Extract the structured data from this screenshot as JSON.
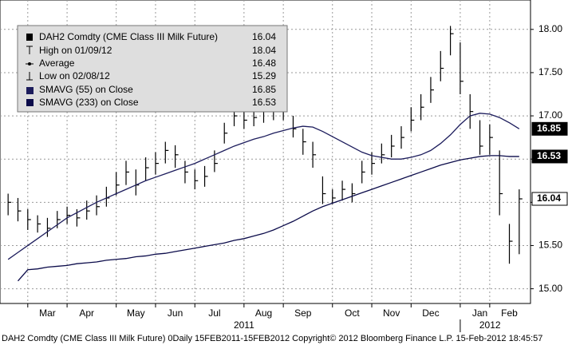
{
  "chart_data": {
    "type": "ohlc",
    "categories": [
      null,
      null,
      null,
      null,
      "Mar",
      null,
      null,
      null,
      "Apr",
      null,
      null,
      null,
      null,
      "May",
      null,
      null,
      null,
      "Jun",
      null,
      null,
      null,
      "Jul",
      null,
      null,
      null,
      null,
      "Aug",
      null,
      null,
      null,
      "Sep",
      null,
      null,
      null,
      null,
      "Oct",
      null,
      null,
      null,
      "Nov",
      null,
      null,
      null,
      "Dec",
      null,
      null,
      null,
      null,
      "Jan",
      null,
      null,
      "Feb",
      null
    ],
    "x_groups": [
      "2011",
      "2012"
    ],
    "series": [
      {
        "name": "DAH2 Comdty (CME Class III Milk Future)",
        "color": "#000000",
        "last": 16.04,
        "high": [
          16.1,
          16.05,
          15.92,
          15.85,
          15.82,
          15.9,
          15.95,
          15.92,
          16.02,
          16.08,
          16.18,
          16.35,
          16.48,
          16.38,
          16.52,
          16.58,
          16.7,
          16.66,
          16.48,
          16.38,
          16.42,
          16.6,
          16.92,
          17.1,
          17.05,
          17.08,
          17.12,
          17.12,
          17.14,
          17.0,
          16.85,
          16.7,
          16.3,
          16.15,
          16.25,
          16.22,
          16.48,
          16.58,
          16.68,
          16.78,
          16.88,
          17.1,
          17.25,
          17.45,
          17.75,
          18.04,
          17.85,
          17.25,
          16.95,
          16.9,
          16.6,
          15.75,
          16.15
        ],
        "low": [
          15.85,
          15.78,
          15.68,
          15.65,
          15.6,
          15.7,
          15.75,
          15.72,
          15.8,
          15.85,
          15.95,
          16.08,
          16.2,
          16.08,
          16.25,
          16.32,
          16.45,
          16.4,
          16.22,
          16.15,
          16.18,
          16.35,
          16.68,
          16.88,
          16.85,
          16.88,
          16.92,
          16.95,
          16.95,
          16.75,
          16.55,
          16.4,
          15.98,
          15.98,
          16.02,
          16.0,
          16.22,
          16.32,
          16.45,
          16.52,
          16.62,
          16.82,
          16.95,
          17.15,
          17.4,
          17.7,
          17.25,
          16.85,
          16.55,
          16.55,
          15.85,
          15.29,
          15.4
        ],
        "close": [
          16.0,
          15.9,
          15.8,
          15.75,
          15.7,
          15.8,
          15.85,
          15.82,
          15.9,
          15.95,
          16.05,
          16.2,
          16.35,
          16.2,
          16.4,
          16.45,
          16.6,
          16.55,
          16.35,
          16.25,
          16.3,
          16.45,
          16.8,
          17.0,
          16.95,
          16.98,
          17.05,
          17.05,
          17.05,
          16.85,
          16.7,
          16.55,
          16.1,
          16.05,
          16.15,
          16.1,
          16.35,
          16.45,
          16.55,
          16.65,
          16.75,
          16.95,
          17.1,
          17.3,
          17.55,
          17.95,
          17.4,
          17.05,
          16.65,
          16.75,
          16.1,
          15.55,
          16.04
        ],
        "stats": [
          {
            "label": "High on 01/09/12",
            "value": 18.04
          },
          {
            "label": "Average",
            "value": 16.48
          },
          {
            "label": "Low on 02/08/12",
            "value": 15.29
          }
        ]
      },
      {
        "name": "SMAVG (55) on Close",
        "color": "#1c1c5c",
        "last": 16.85,
        "values": [
          15.34,
          15.42,
          15.5,
          15.58,
          15.66,
          15.74,
          15.82,
          15.88,
          15.94,
          16.0,
          16.05,
          16.1,
          16.15,
          16.2,
          16.25,
          16.29,
          16.33,
          16.37,
          16.41,
          16.45,
          16.5,
          16.55,
          16.6,
          16.65,
          16.69,
          16.73,
          16.76,
          16.8,
          16.83,
          16.86,
          16.88,
          16.87,
          16.82,
          16.76,
          16.7,
          16.64,
          16.58,
          16.54,
          16.52,
          16.5,
          16.5,
          16.52,
          16.55,
          16.6,
          16.68,
          16.78,
          16.9,
          17.0,
          17.03,
          17.02,
          16.98,
          16.92,
          16.85
        ]
      },
      {
        "name": "SMAVG (233) on Close",
        "color": "#0b0b4a",
        "last": 16.53,
        "values": [
          null,
          15.09,
          15.22,
          15.23,
          15.25,
          15.26,
          15.27,
          15.29,
          15.3,
          15.31,
          15.33,
          15.34,
          15.35,
          15.37,
          15.38,
          15.4,
          15.41,
          15.43,
          15.45,
          15.47,
          15.49,
          15.51,
          15.53,
          15.56,
          15.58,
          15.61,
          15.64,
          15.68,
          15.73,
          15.78,
          15.84,
          15.9,
          15.95,
          15.99,
          16.03,
          16.07,
          16.11,
          16.15,
          16.19,
          16.23,
          16.27,
          16.31,
          16.35,
          16.39,
          16.43,
          16.46,
          16.49,
          16.51,
          16.53,
          16.54,
          16.54,
          16.53,
          16.53
        ]
      }
    ],
    "ylim": [
      14.83,
      18.34
    ],
    "yticks": [
      {
        "value": 15,
        "label": "15.00"
      },
      {
        "value": 15.5,
        "label": "15.50"
      },
      {
        "value": 16,
        "label": "16.00"
      },
      {
        "value": 16.5,
        "label": "16.50"
      },
      {
        "value": 17,
        "label": "17.00"
      },
      {
        "value": 17.5,
        "label": "17.50"
      },
      {
        "value": 18,
        "label": "18.00"
      }
    ],
    "grid": true,
    "footer": "DAH2 Comdty (CME Class III Milk Future) 0Daily 15FEB2011-15FEB2012 Copyright© 2012 Bloomberg Finance L.P. 15-Feb-2012 18:45:57"
  }
}
